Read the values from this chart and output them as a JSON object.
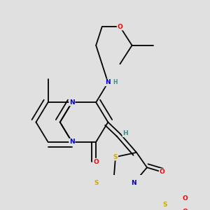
{
  "bg_color": "#e0e0e0",
  "bond_color": "#000000",
  "bw": 1.3,
  "colors": {
    "C": "#000000",
    "N": "#0000cc",
    "O": "#ff0000",
    "S": "#ccaa00",
    "H": "#2f8f8f",
    "bond": "#000000"
  }
}
